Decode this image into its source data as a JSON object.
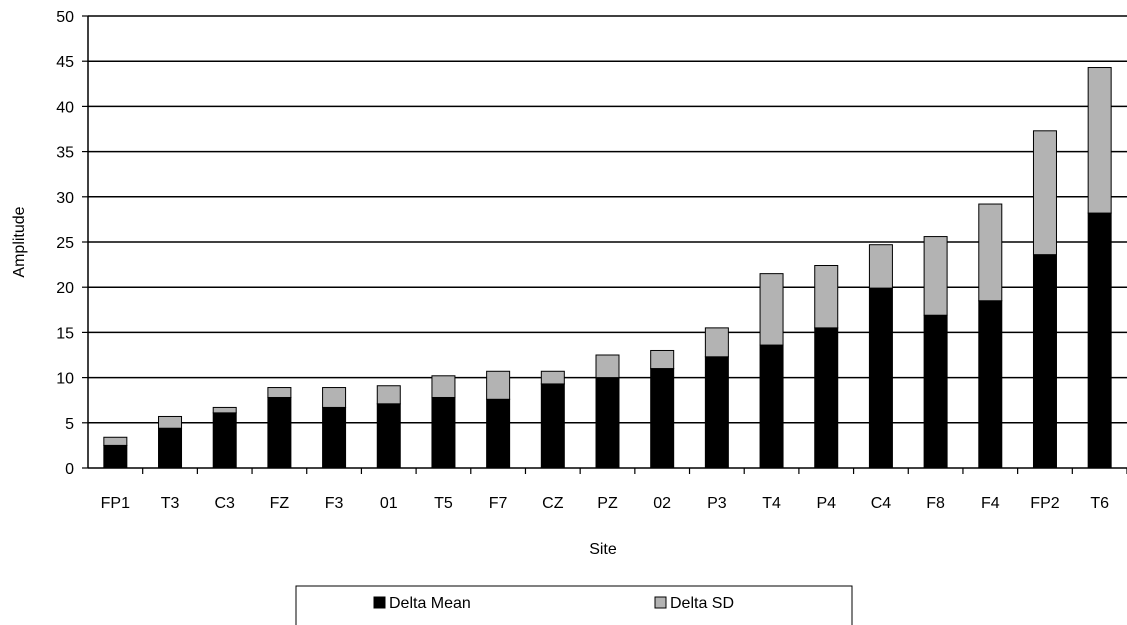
{
  "chart_data": {
    "type": "bar",
    "stacked": true,
    "categories": [
      "FP1",
      "T3",
      "C3",
      "FZ",
      "F3",
      "01",
      "T5",
      "F7",
      "CZ",
      "PZ",
      "02",
      "P3",
      "T4",
      "P4",
      "C4",
      "F8",
      "F4",
      "FP2",
      "T6"
    ],
    "series": [
      {
        "name": "Delta Mean",
        "color": "#000000",
        "values": [
          2.5,
          4.4,
          6.1,
          7.8,
          6.7,
          7.1,
          7.8,
          7.6,
          9.3,
          10.0,
          11.0,
          12.3,
          13.6,
          15.5,
          19.9,
          16.9,
          18.5,
          23.6,
          28.2
        ]
      },
      {
        "name": "Delta SD",
        "color": "#b3b3b3",
        "values": [
          0.9,
          1.3,
          0.6,
          1.1,
          2.2,
          2.0,
          2.4,
          3.1,
          1.4,
          2.5,
          2.0,
          3.2,
          7.9,
          6.9,
          4.8,
          8.7,
          10.7,
          13.7,
          16.1
        ]
      }
    ],
    "xlabel": "Site",
    "ylabel": "Amplitude",
    "ylim": [
      0,
      50
    ],
    "yticks": [
      0,
      5,
      10,
      15,
      20,
      25,
      30,
      35,
      40,
      45,
      50
    ],
    "grid": true,
    "legend_position": "bottom"
  }
}
